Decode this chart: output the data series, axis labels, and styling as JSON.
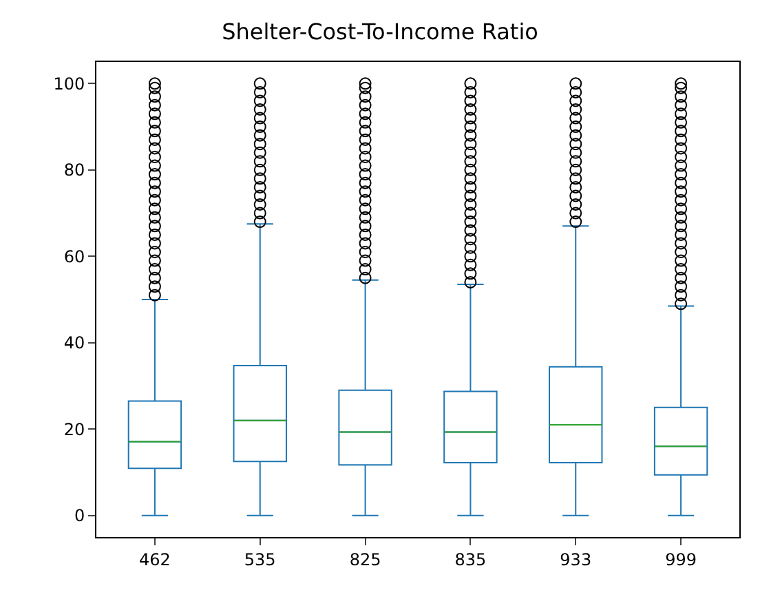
{
  "chart_data": {
    "type": "box",
    "title": "Shelter-Cost-To-Income Ratio",
    "categories": [
      "462",
      "535",
      "825",
      "835",
      "933",
      "999"
    ],
    "boxes": [
      {
        "low": 0,
        "q1": 10.9,
        "median": 17.1,
        "q3": 26.5,
        "high": 50,
        "outliers": [
          51,
          53,
          55,
          57,
          59,
          61,
          63,
          65,
          67,
          69,
          71,
          73,
          75,
          77,
          79,
          81,
          83,
          85,
          87,
          89,
          91,
          93,
          95,
          97,
          99,
          100
        ]
      },
      {
        "low": 0,
        "q1": 12.5,
        "median": 22,
        "q3": 34.7,
        "high": 67.5,
        "outliers": [
          68,
          70,
          72,
          74,
          76,
          78,
          80,
          82,
          84,
          86,
          88,
          90,
          92,
          94,
          96,
          98,
          100
        ]
      },
      {
        "low": 0,
        "q1": 11.7,
        "median": 19.3,
        "q3": 29,
        "high": 54.5,
        "outliers": [
          55,
          57,
          59,
          61,
          63,
          65,
          67,
          69,
          71,
          73,
          75,
          77,
          79,
          81,
          83,
          85,
          87,
          89,
          91,
          93,
          95,
          97,
          99,
          100
        ]
      },
      {
        "low": 0,
        "q1": 12.2,
        "median": 19.3,
        "q3": 28.7,
        "high": 53.5,
        "outliers": [
          54,
          56,
          58,
          60,
          62,
          64,
          66,
          68,
          70,
          72,
          74,
          76,
          78,
          80,
          82,
          84,
          86,
          88,
          90,
          92,
          94,
          96,
          98,
          100
        ]
      },
      {
        "low": 0,
        "q1": 12.2,
        "median": 21,
        "q3": 34.4,
        "high": 67,
        "outliers": [
          68,
          70,
          72,
          74,
          76,
          78,
          80,
          82,
          84,
          86,
          88,
          90,
          92,
          94,
          96,
          98,
          100
        ]
      },
      {
        "low": 0,
        "q1": 9.4,
        "median": 16,
        "q3": 25,
        "high": 48.5,
        "outliers": [
          49,
          51,
          53,
          55,
          57,
          59,
          61,
          63,
          65,
          67,
          69,
          71,
          73,
          75,
          77,
          79,
          81,
          83,
          85,
          87,
          89,
          91,
          93,
          95,
          97,
          99,
          100
        ]
      }
    ],
    "color": "#1f77b4",
    "marker": "circle",
    "ylim": [
      -5,
      105
    ],
    "yticks": [
      0,
      20,
      40,
      60,
      80,
      100
    ]
  }
}
